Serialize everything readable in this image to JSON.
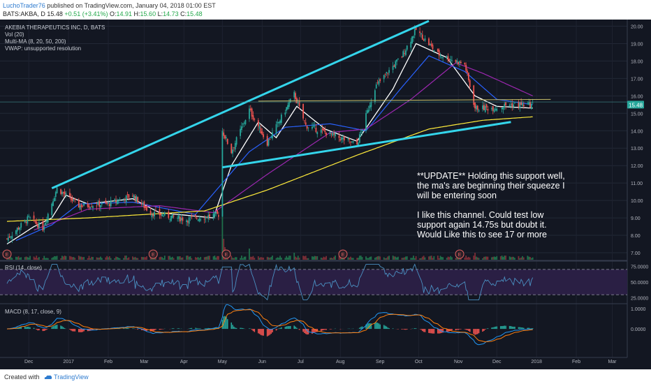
{
  "header": {
    "author": "LuchoTrader76",
    "published": "published on TradingView.com, January 04, 2018 01:00 EST",
    "symbol": "BATS:AKBA, D",
    "last": "15.48",
    "change": "+0.51 (+3.41%)",
    "open_label": "O:",
    "open": "14.91",
    "high_label": "H:",
    "high": "15.60",
    "low_label": "L:",
    "low": "14.73",
    "close_label": "C:",
    "close": "15.48"
  },
  "legend": {
    "line1": "AKEBIA THERAPEUTICS INC, D, BATS",
    "line2": "Vol (20)",
    "line3": "Multi-MA (8, 20, 50, 200)",
    "line4": "VWAP: unsupported resolution"
  },
  "annotation": {
    "lines": [
      "**UPDATE** Holding this support well,",
      "the ma's are beginning their squeeze I",
      "will be entering soon",
      "",
      "I like this channel. Could test low",
      "support again 14.75s but doubt it.",
      "Would Like this to see 17 or more"
    ]
  },
  "footer": {
    "created": "Created with",
    "brand": "TradingView"
  },
  "colors": {
    "background": "#131722",
    "up": "#26a69a",
    "down": "#ef5350",
    "ma8": "#ffffff",
    "ma20": "#2962ff",
    "ma50": "#9c27b0",
    "ma200": "#ffeb3b",
    "trendline": "#34d5eb",
    "rsi": "#4a90c2",
    "macd": "#2196f3",
    "signal": "#ff7f0e"
  },
  "chart_data": [
    {
      "type": "candlestick",
      "title": "AKEBIA THERAPEUTICS INC, D, BATS",
      "x_ticks": [
        "Dec",
        "2017",
        "Feb",
        "Mar",
        "Apr",
        "May",
        "Jun",
        "Jul",
        "Aug",
        "Sep",
        "Oct",
        "Nov",
        "Dec",
        "2018",
        "Feb",
        "Mar"
      ],
      "y_ticks": [
        "7.00",
        "8.00",
        "9.00",
        "10.00",
        "11.00",
        "12.00",
        "13.00",
        "14.00",
        "15.00",
        "16.00",
        "17.00",
        "18.00",
        "19.00",
        "20.00"
      ],
      "ylim": [
        6.6,
        20.3
      ],
      "last_price_label": "15.48",
      "approx_close_path": [
        {
          "date": "2016-11-14",
          "close": 7.8
        },
        {
          "date": "2016-12-01",
          "close": 9.0
        },
        {
          "date": "2016-12-12",
          "close": 8.4
        },
        {
          "date": "2016-12-23",
          "close": 10.7
        },
        {
          "date": "2017-01-09",
          "close": 9.7
        },
        {
          "date": "2017-02-01",
          "close": 9.8
        },
        {
          "date": "2017-02-20",
          "close": 10.3
        },
        {
          "date": "2017-03-06",
          "close": 9.3
        },
        {
          "date": "2017-04-03",
          "close": 8.9
        },
        {
          "date": "2017-04-28",
          "close": 9.2
        },
        {
          "date": "2017-05-01",
          "close": 14.0
        },
        {
          "date": "2017-05-08",
          "close": 12.8
        },
        {
          "date": "2017-05-22",
          "close": 15.2
        },
        {
          "date": "2017-06-05",
          "close": 13.3
        },
        {
          "date": "2017-06-26",
          "close": 16.1
        },
        {
          "date": "2017-07-05",
          "close": 14.3
        },
        {
          "date": "2017-07-24",
          "close": 13.8
        },
        {
          "date": "2017-08-14",
          "close": 13.2
        },
        {
          "date": "2017-08-28",
          "close": 16.5
        },
        {
          "date": "2017-09-18",
          "close": 18.3
        },
        {
          "date": "2017-09-29",
          "close": 19.8
        },
        {
          "date": "2017-10-16",
          "close": 18.4
        },
        {
          "date": "2017-11-06",
          "close": 17.8
        },
        {
          "date": "2017-11-14",
          "close": 15.3
        },
        {
          "date": "2017-11-27",
          "close": 15.3
        },
        {
          "date": "2017-12-11",
          "close": 15.5
        },
        {
          "date": "2017-12-29",
          "close": 15.48
        }
      ],
      "moving_averages": [
        {
          "name": "MA 8",
          "color": "#ffffff",
          "path": [
            {
              "date": "2016-11-14",
              "value": 7.5
            },
            {
              "date": "2016-12-05",
              "value": 8.5
            },
            {
              "date": "2016-12-19",
              "value": 9.0
            },
            {
              "date": "2016-12-30",
              "value": 10.3
            },
            {
              "date": "2017-01-16",
              "value": 9.8
            },
            {
              "date": "2017-02-20",
              "value": 10.1
            },
            {
              "date": "2017-03-13",
              "value": 9.3
            },
            {
              "date": "2017-04-24",
              "value": 9.0
            },
            {
              "date": "2017-05-08",
              "value": 12.0
            },
            {
              "date": "2017-05-29",
              "value": 14.5
            },
            {
              "date": "2017-06-12",
              "value": 13.6
            },
            {
              "date": "2017-06-28",
              "value": 15.4
            },
            {
              "date": "2017-07-20",
              "value": 14.1
            },
            {
              "date": "2017-08-14",
              "value": 13.4
            },
            {
              "date": "2017-09-11",
              "value": 16.4
            },
            {
              "date": "2017-09-29",
              "value": 19.0
            },
            {
              "date": "2017-10-23",
              "value": 18.2
            },
            {
              "date": "2017-11-14",
              "value": 16.0
            },
            {
              "date": "2017-12-01",
              "value": 15.4
            },
            {
              "date": "2017-12-29",
              "value": 15.3
            }
          ]
        },
        {
          "name": "MA 20",
          "color": "#2962ff",
          "path": [
            {
              "date": "2016-11-21",
              "value": 7.7
            },
            {
              "date": "2016-12-19",
              "value": 8.6
            },
            {
              "date": "2017-01-09",
              "value": 9.8
            },
            {
              "date": "2017-02-20",
              "value": 9.9
            },
            {
              "date": "2017-04-10",
              "value": 9.2
            },
            {
              "date": "2017-05-22",
              "value": 12.8
            },
            {
              "date": "2017-06-19",
              "value": 14.2
            },
            {
              "date": "2017-07-24",
              "value": 14.4
            },
            {
              "date": "2017-08-21",
              "value": 14.0
            },
            {
              "date": "2017-09-18",
              "value": 16.5
            },
            {
              "date": "2017-10-09",
              "value": 18.3
            },
            {
              "date": "2017-11-06",
              "value": 17.4
            },
            {
              "date": "2017-12-01",
              "value": 15.8
            },
            {
              "date": "2017-12-29",
              "value": 15.5
            }
          ]
        },
        {
          "name": "MA 50",
          "color": "#9c27b0",
          "path": [
            {
              "date": "2016-12-05",
              "value": 8.3
            },
            {
              "date": "2017-01-16",
              "value": 9.5
            },
            {
              "date": "2017-03-13",
              "value": 9.7
            },
            {
              "date": "2017-04-24",
              "value": 9.3
            },
            {
              "date": "2017-06-05",
              "value": 11.5
            },
            {
              "date": "2017-07-24",
              "value": 13.9
            },
            {
              "date": "2017-08-21",
              "value": 14.1
            },
            {
              "date": "2017-09-25",
              "value": 15.8
            },
            {
              "date": "2017-10-30",
              "value": 17.9
            },
            {
              "date": "2017-11-20",
              "value": 17.3
            },
            {
              "date": "2017-12-29",
              "value": 16.0
            }
          ]
        },
        {
          "name": "MA 200",
          "color": "#ffeb3b",
          "path": [
            {
              "date": "2016-11-14",
              "value": 8.8
            },
            {
              "date": "2017-01-16",
              "value": 9.0
            },
            {
              "date": "2017-04-17",
              "value": 9.4
            },
            {
              "date": "2017-06-05",
              "value": 10.6
            },
            {
              "date": "2017-08-14",
              "value": 12.6
            },
            {
              "date": "2017-10-09",
              "value": 14.1
            },
            {
              "date": "2017-11-20",
              "value": 14.6
            },
            {
              "date": "2017-12-29",
              "value": 14.8
            }
          ]
        }
      ],
      "trendlines": [
        {
          "name": "upper",
          "from": {
            "date": "2016-12-19",
            "value": 10.7
          },
          "to": {
            "date": "2017-10-09",
            "value": 20.3
          }
        },
        {
          "name": "lower",
          "from": {
            "date": "2017-05-01",
            "value": 11.9
          },
          "to": {
            "date": "2017-12-12",
            "value": 14.5
          }
        },
        {
          "name": "resistance",
          "from": {
            "date": "2017-05-29",
            "value": 15.7
          },
          "to": {
            "date": "2018-01-12",
            "value": 15.8
          }
        }
      ],
      "earnings_markers": [
        "2016-11-14",
        "2017-03-08",
        "2017-05-04",
        "2017-08-03",
        "2017-11-02"
      ]
    },
    {
      "type": "line",
      "title": "RSI (14, close)",
      "y_ticks": [
        "25.0000",
        "50.0000",
        "75.0000"
      ],
      "ylim": [
        18,
        82
      ],
      "bands": [
        30,
        70
      ]
    },
    {
      "type": "line",
      "title": "MACD (8, 17, close, 9)",
      "y_ticks": [
        "0.0000",
        "1.0000"
      ],
      "ylim": [
        -1.4,
        1.2
      ]
    }
  ]
}
